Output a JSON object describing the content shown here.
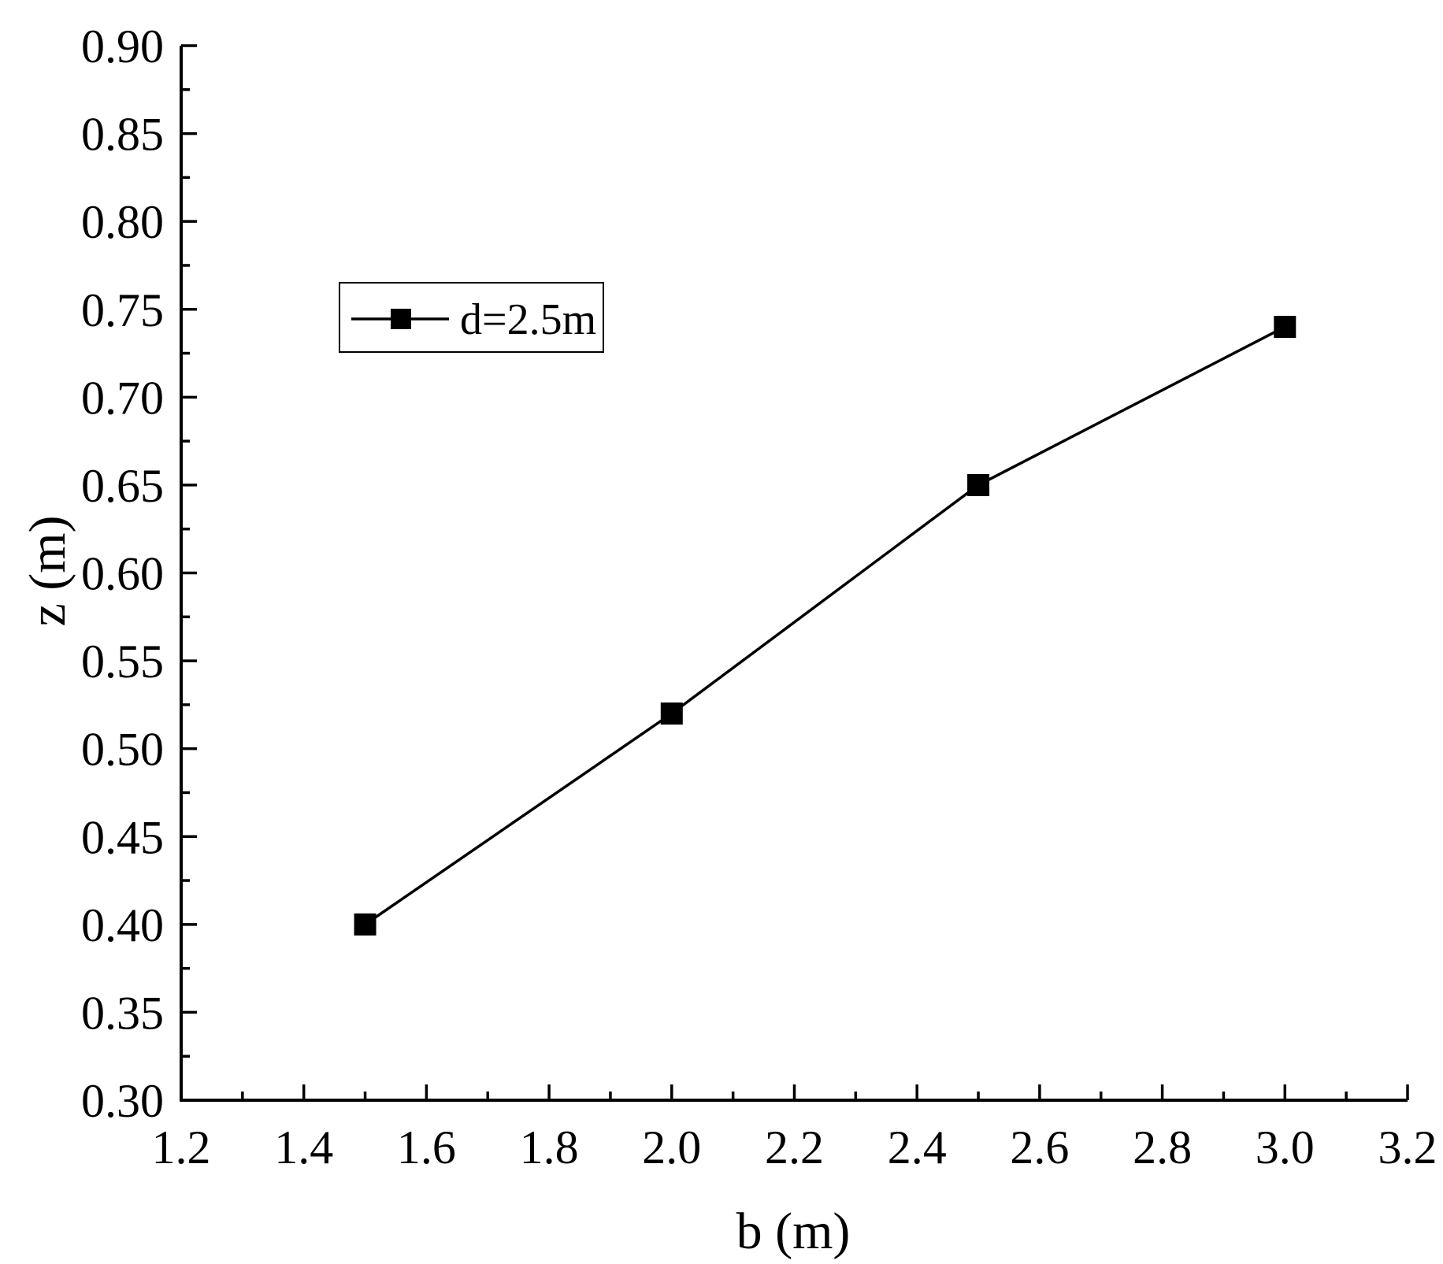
{
  "chart_data": {
    "type": "line",
    "title": "",
    "xlabel": "b (m)",
    "ylabel": "z (m)",
    "xlim": [
      1.2,
      3.2
    ],
    "ylim": [
      0.3,
      0.9
    ],
    "x_ticks": [
      "1.2",
      "1.4",
      "1.6",
      "1.8",
      "2.0",
      "2.2",
      "2.4",
      "2.6",
      "2.8",
      "3.0",
      "3.2"
    ],
    "y_ticks": [
      "0.30",
      "0.35",
      "0.40",
      "0.45",
      "0.50",
      "0.55",
      "0.60",
      "0.65",
      "0.70",
      "0.75",
      "0.80",
      "0.85",
      "0.90"
    ],
    "grid": false,
    "legend_position": "upper-left",
    "series": [
      {
        "name": "d=2.5m",
        "marker": "square",
        "color": "#000000",
        "x": [
          1.5,
          2.0,
          2.5,
          3.0
        ],
        "y": [
          0.4,
          0.52,
          0.65,
          0.74
        ]
      }
    ]
  }
}
